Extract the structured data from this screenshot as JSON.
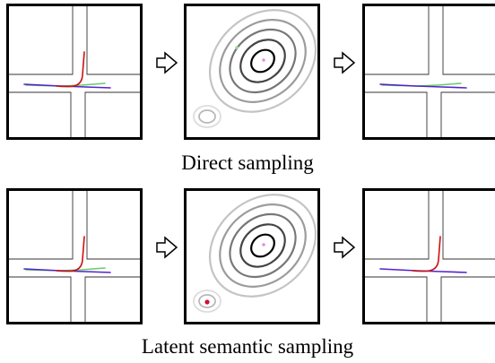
{
  "captions": {
    "direct": "Direct sampling",
    "latent": "Latent semantic sampling"
  },
  "colors": {
    "frame": "#000000",
    "road": "#333333",
    "trajectory_red": "#cc1111",
    "trajectory_green": "#66cc66",
    "trajectory_purple": "#5522cc",
    "contour_dark": "#000000",
    "contour_light": "#c8c8c8",
    "mode_point_pink": "#e28fe0",
    "mode_point_green": "#99e099",
    "sampled_point_red": "#cc1133"
  },
  "rows": [
    {
      "name": "direct-sampling-row",
      "panels": [
        {
          "kind": "scene",
          "trajectories": [
            "red-turn",
            "green-straight",
            "purple-straight"
          ]
        },
        {
          "kind": "distribution",
          "small_mode_sample": false,
          "green_point": true
        },
        {
          "kind": "scene",
          "trajectories": [
            "green-straight",
            "purple-straight"
          ]
        }
      ]
    },
    {
      "name": "latent-sampling-row",
      "panels": [
        {
          "kind": "scene",
          "trajectories": [
            "red-turn",
            "green-straight",
            "purple-straight"
          ]
        },
        {
          "kind": "distribution",
          "small_mode_sample": true,
          "green_point": false
        },
        {
          "kind": "scene",
          "trajectories": [
            "red-turn",
            "purple-straight"
          ]
        }
      ]
    }
  ],
  "arrow_icon": "hollow-right-arrow-icon"
}
